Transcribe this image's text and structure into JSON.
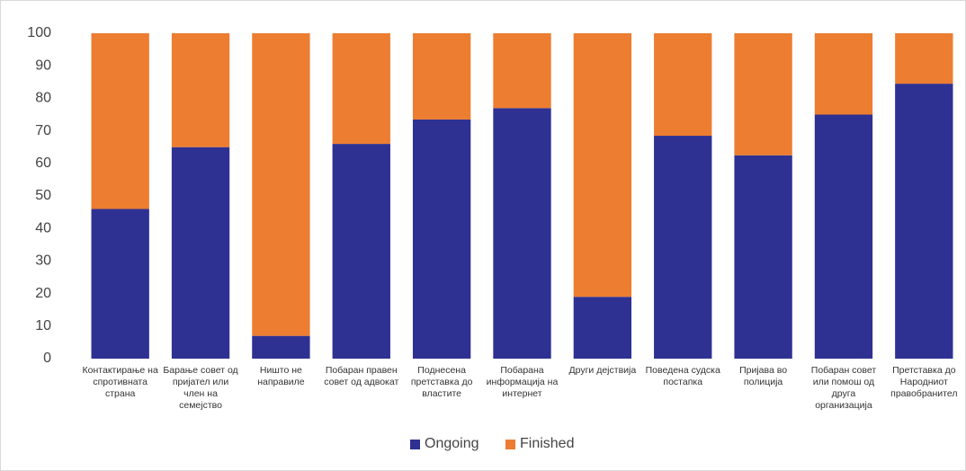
{
  "chart_data": {
    "type": "stacked-bar",
    "categories": [
      "Контактирање на спротивната страна",
      "Барање совет од пријател или член на семејство",
      "Ништо не направиле",
      "Побаран правен совет од адвокат",
      "Поднесена претставка до властите",
      "Побарана информација на интернет",
      "Други дејствија",
      "Поведена судска постапка",
      "Пријава во полиција",
      "Побаран совет или помош од друга организација",
      "Претставка до Народниот правобранител"
    ],
    "series": [
      {
        "name": "Ongoing",
        "color": "#2e3192",
        "values": [
          46,
          65,
          7,
          66,
          73.5,
          77,
          19,
          68.5,
          62.5,
          75,
          84.5
        ]
      },
      {
        "name": "Finished",
        "color": "#ed7d31",
        "values": [
          54,
          35,
          93,
          34,
          26.5,
          23,
          81,
          31.5,
          37.5,
          25,
          15.5
        ]
      }
    ],
    "ylim": [
      0,
      100
    ],
    "yticks": [
      0,
      10,
      20,
      30,
      40,
      50,
      60,
      70,
      80,
      90,
      100
    ],
    "grid": false,
    "legend": "bottom"
  }
}
